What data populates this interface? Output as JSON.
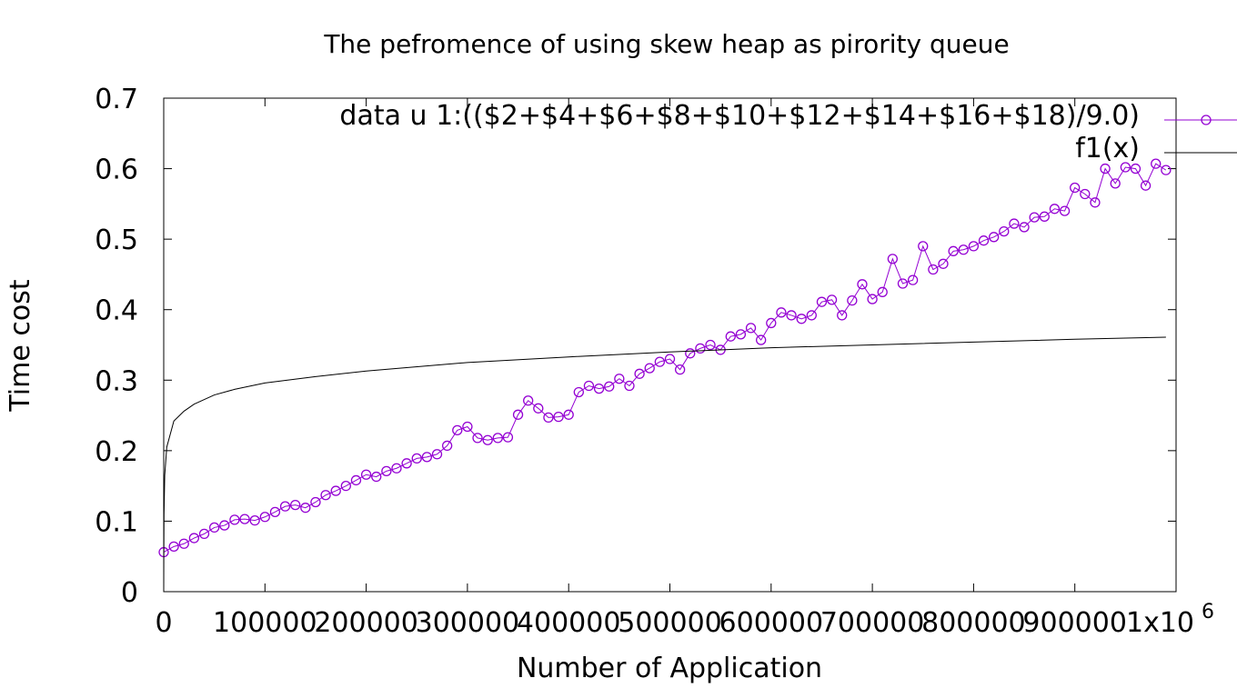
{
  "chart_data": {
    "type": "line",
    "title": "The pefromence of using skew heap as pirority queue",
    "xlabel": "Number of Application",
    "ylabel": "Time cost",
    "xlim": [
      0,
      1000000
    ],
    "ylim": [
      0,
      0.7
    ],
    "x_ticks": [
      {
        "value": 0,
        "label": "0"
      },
      {
        "value": 100000,
        "label": "100000"
      },
      {
        "value": 200000,
        "label": "200000"
      },
      {
        "value": 300000,
        "label": "300000"
      },
      {
        "value": 400000,
        "label": "400000"
      },
      {
        "value": 500000,
        "label": "500000"
      },
      {
        "value": 600000,
        "label": "600000"
      },
      {
        "value": 700000,
        "label": "700000"
      },
      {
        "value": 800000,
        "label": "800000"
      },
      {
        "value": 900000,
        "label": "900000"
      },
      {
        "value": 1000000,
        "label": "1x10",
        "exponent": "6"
      }
    ],
    "y_ticks": [
      {
        "value": 0,
        "label": "0"
      },
      {
        "value": 0.1,
        "label": "0.1"
      },
      {
        "value": 0.2,
        "label": "0.2"
      },
      {
        "value": 0.3,
        "label": "0.3"
      },
      {
        "value": 0.4,
        "label": "0.4"
      },
      {
        "value": 0.5,
        "label": "0.5"
      },
      {
        "value": 0.6,
        "label": "0.6"
      },
      {
        "value": 0.7,
        "label": "0.7"
      }
    ],
    "grid": false,
    "legend_position": "top-right",
    "series": [
      {
        "name": "data u 1:(($2+$4+$6+$8+$10+$12+$14+$16+$18)/9.0)",
        "color": "#9400d3",
        "marker": "circle",
        "x": [
          0,
          10000,
          20000,
          30000,
          40000,
          50000,
          60000,
          70000,
          80000,
          90000,
          100000,
          110000,
          120000,
          130000,
          140000,
          150000,
          160000,
          170000,
          180000,
          190000,
          200000,
          210000,
          220000,
          230000,
          240000,
          250000,
          260000,
          270000,
          280000,
          290000,
          300000,
          310000,
          320000,
          330000,
          340000,
          350000,
          360000,
          370000,
          380000,
          390000,
          400000,
          410000,
          420000,
          430000,
          440000,
          450000,
          460000,
          470000,
          480000,
          490000,
          500000,
          510000,
          520000,
          530000,
          540000,
          550000,
          560000,
          570000,
          580000,
          590000,
          600000,
          610000,
          620000,
          630000,
          640000,
          650000,
          660000,
          670000,
          680000,
          690000,
          700000,
          710000,
          720000,
          730000,
          740000,
          750000,
          760000,
          770000,
          780000,
          790000,
          800000,
          810000,
          820000,
          830000,
          840000,
          850000,
          860000,
          870000,
          880000,
          890000,
          900000,
          910000,
          920000,
          930000,
          940000,
          950000,
          960000,
          970000,
          980000,
          990000
        ],
        "y": [
          0.056,
          0.064,
          0.068,
          0.076,
          0.082,
          0.091,
          0.094,
          0.102,
          0.103,
          0.101,
          0.106,
          0.113,
          0.121,
          0.123,
          0.119,
          0.127,
          0.137,
          0.143,
          0.15,
          0.158,
          0.166,
          0.163,
          0.171,
          0.175,
          0.182,
          0.189,
          0.191,
          0.195,
          0.207,
          0.229,
          0.234,
          0.218,
          0.215,
          0.218,
          0.219,
          0.251,
          0.271,
          0.26,
          0.247,
          0.248,
          0.251,
          0.283,
          0.292,
          0.288,
          0.291,
          0.302,
          0.292,
          0.309,
          0.317,
          0.326,
          0.33,
          0.315,
          0.338,
          0.345,
          0.35,
          0.343,
          0.362,
          0.365,
          0.374,
          0.357,
          0.381,
          0.396,
          0.392,
          0.387,
          0.392,
          0.411,
          0.414,
          0.392,
          0.413,
          0.436,
          0.415,
          0.425,
          0.472,
          0.437,
          0.442,
          0.49,
          0.457,
          0.465,
          0.483,
          0.485,
          0.49,
          0.498,
          0.503,
          0.511,
          0.522,
          0.517,
          0.531,
          0.532,
          0.543,
          0.54,
          0.573,
          0.564,
          0.552,
          0.6,
          0.579,
          0.602,
          0.6,
          0.576,
          0.607,
          0.598
        ]
      },
      {
        "name": "f1(x)",
        "color": "#000000",
        "marker": "none",
        "x": [
          0,
          100,
          300,
          1000,
          3000,
          10000,
          20000,
          30000,
          50000,
          70000,
          100000,
          150000,
          200000,
          300000,
          400000,
          500000,
          600000,
          700000,
          800000,
          900000,
          990000
        ],
        "y": [
          0.0,
          0.05,
          0.11,
          0.165,
          0.205,
          0.242,
          0.256,
          0.266,
          0.279,
          0.287,
          0.296,
          0.305,
          0.313,
          0.325,
          0.333,
          0.34,
          0.346,
          0.35,
          0.354,
          0.358,
          0.361
        ]
      }
    ]
  }
}
